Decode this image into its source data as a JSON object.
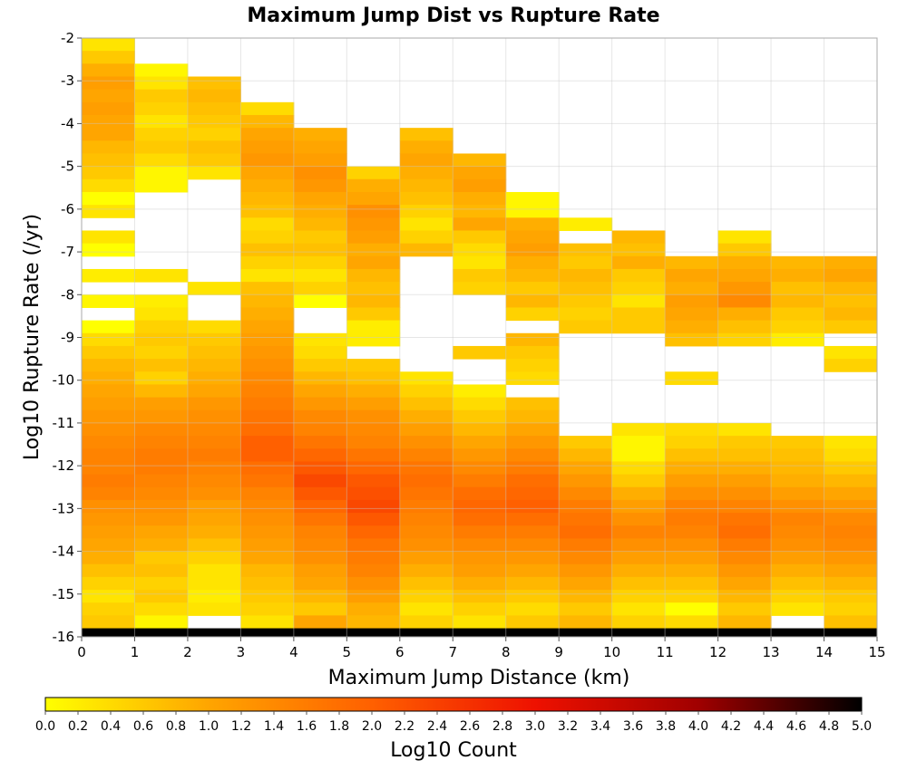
{
  "chart_data": {
    "type": "heatmap",
    "title": "Maximum Jump Dist vs Rupture Rate",
    "xlabel": "Maximum Jump Distance (km)",
    "ylabel": "Log10 Rupture Rate (/yr)",
    "colorbar_label": "Log10 Count",
    "xlim": [
      0,
      15
    ],
    "ylim": [
      -16,
      -2
    ],
    "x_ticks": [
      "0",
      "1",
      "2",
      "3",
      "4",
      "5",
      "6",
      "7",
      "8",
      "9",
      "10",
      "11",
      "12",
      "13",
      "14",
      "15"
    ],
    "y_ticks": [
      "-2",
      "-3",
      "-4",
      "-5",
      "-6",
      "-7",
      "-8",
      "-9",
      "-10",
      "-11",
      "-12",
      "-13",
      "-14",
      "-15",
      "-16"
    ],
    "colorbar_ticks": [
      "0.0",
      "0.2",
      "0.4",
      "0.6",
      "0.8",
      "1.0",
      "1.2",
      "1.4",
      "1.6",
      "1.8",
      "2.0",
      "2.2",
      "2.4",
      "2.6",
      "2.8",
      "3.0",
      "3.2",
      "3.4",
      "3.6",
      "3.8",
      "4.0",
      "4.2",
      "4.4",
      "4.6",
      "4.8",
      "5.0"
    ],
    "color_range": [
      0,
      5
    ],
    "colormap_stops": [
      "#ffff00",
      "#ffa500",
      "#ff6000",
      "#ee1100",
      "#a00000",
      "#000000"
    ],
    "grid": true,
    "x_bin_width": 1,
    "y_bin_width": 0.3,
    "y_bin_start": -16.1,
    "columns_value_note": "values listed from top row (y≈-3.1) downward; null = empty bin",
    "columns": [
      [
        0.3,
        0.6,
        0.9,
        1.1,
        1.0,
        1.1,
        1.0,
        1.0,
        0.8,
        0.7,
        0.6,
        0.4,
        0.0,
        0.3,
        null,
        0.3,
        0.0,
        null,
        0.2,
        null,
        0.1,
        null,
        0.0,
        0.4,
        0.6,
        0.8,
        0.9,
        1.0,
        1.1,
        1.2,
        1.3,
        1.4,
        1.5,
        1.5,
        1.6,
        1.5,
        1.3,
        1.2,
        1.1,
        1.0,
        0.9,
        0.7,
        0.5,
        0.3,
        0.5,
        0.6,
        5.0
      ],
      [
        null,
        null,
        0.1,
        0.3,
        0.6,
        0.5,
        0.3,
        0.5,
        0.6,
        0.4,
        0.1,
        0.1,
        null,
        null,
        null,
        null,
        null,
        null,
        0.3,
        null,
        0.2,
        0.3,
        0.5,
        0.6,
        0.5,
        0.7,
        0.5,
        0.8,
        1.1,
        1.2,
        1.4,
        1.5,
        1.6,
        1.6,
        1.5,
        1.4,
        1.3,
        1.2,
        1.0,
        0.9,
        0.6,
        0.7,
        0.5,
        0.6,
        0.4,
        0.1,
        5.0
      ],
      [
        null,
        null,
        null,
        0.7,
        0.8,
        0.7,
        0.6,
        0.5,
        0.7,
        0.6,
        0.3,
        null,
        null,
        null,
        null,
        null,
        null,
        null,
        null,
        0.3,
        null,
        null,
        0.4,
        0.6,
        0.7,
        0.8,
        0.9,
        1.0,
        1.2,
        1.3,
        1.4,
        1.5,
        1.6,
        1.5,
        1.4,
        1.3,
        1.1,
        1.0,
        0.9,
        0.7,
        0.5,
        0.3,
        0.3,
        0.2,
        0.3,
        null,
        5.0
      ],
      [
        null,
        null,
        0.4,
        0.8,
        1.0,
        1.1,
        1.2,
        1.0,
        0.9,
        0.8,
        0.7,
        0.4,
        0.5,
        0.7,
        0.5,
        0.3,
        0.7,
        0.8,
        0.9,
        1.0,
        1.1,
        1.2,
        1.3,
        1.4,
        1.5,
        1.6,
        1.7,
        1.8,
        2.0,
        2.0,
        1.8,
        1.7,
        1.5,
        1.4,
        1.3,
        1.2,
        1.1,
        1.0,
        0.8,
        0.7,
        0.6,
        0.5,
        0.3,
        5.0
      ],
      [
        null,
        null,
        null,
        0.9,
        1.0,
        1.1,
        1.3,
        1.2,
        1.0,
        0.9,
        0.8,
        0.6,
        0.7,
        0.5,
        0.3,
        0.5,
        0.0,
        null,
        null,
        0.3,
        0.4,
        0.6,
        0.8,
        1.0,
        1.2,
        1.4,
        1.5,
        1.7,
        1.9,
        2.1,
        2.3,
        2.1,
        1.9,
        1.7,
        1.5,
        1.4,
        1.3,
        1.1,
        1.0,
        0.8,
        0.6,
        1.0,
        5.0
      ],
      [
        null,
        null,
        0.5,
        0.9,
        1.0,
        1.3,
        1.2,
        1.1,
        0.9,
        1.0,
        0.8,
        0.7,
        0.8,
        0.6,
        0.2,
        0.2,
        null,
        0.6,
        0.7,
        0.9,
        1.1,
        1.3,
        1.4,
        1.5,
        1.7,
        1.9,
        2.1,
        2.2,
        2.3,
        2.1,
        1.9,
        1.7,
        1.6,
        1.5,
        1.3,
        1.1,
        0.9,
        0.8,
        5.0
      ],
      [
        null,
        0.7,
        0.9,
        1.0,
        0.9,
        0.8,
        0.7,
        0.5,
        0.3,
        0.5,
        0.8,
        null,
        null,
        null,
        null,
        null,
        null,
        null,
        null,
        null,
        0.3,
        0.5,
        0.7,
        0.9,
        1.1,
        1.3,
        1.5,
        1.7,
        1.8,
        1.7,
        1.6,
        1.5,
        1.4,
        1.3,
        1.1,
        0.9,
        0.7,
        0.5,
        0.3,
        0.5,
        5.0
      ],
      [
        null,
        0.8,
        1.0,
        1.1,
        0.9,
        0.8,
        1.0,
        0.6,
        0.4,
        0.3,
        0.6,
        0.5,
        null,
        null,
        null,
        null,
        0.6,
        null,
        null,
        0.2,
        0.4,
        0.6,
        0.8,
        1.0,
        1.2,
        1.4,
        1.6,
        1.8,
        1.9,
        1.8,
        1.6,
        1.4,
        1.2,
        1.1,
        0.9,
        0.7,
        0.5,
        0.3,
        5.0
      ],
      [
        null,
        0.1,
        0.1,
        0.9,
        1.0,
        1.1,
        0.9,
        0.8,
        0.6,
        0.8,
        0.5,
        null,
        0.8,
        0.6,
        0.5,
        0.4,
        null,
        0.7,
        0.8,
        1.0,
        1.2,
        1.4,
        1.6,
        1.8,
        1.9,
        2.0,
        1.8,
        1.6,
        1.4,
        1.2,
        1.0,
        0.8,
        0.6,
        0.4,
        0.6,
        5.0
      ],
      [
        null,
        0.2,
        null,
        0.7,
        0.6,
        0.8,
        0.7,
        0.6,
        0.5,
        0.6,
        null,
        null,
        null,
        null,
        null,
        null,
        null,
        null,
        0.6,
        0.8,
        1.0,
        1.2,
        1.4,
        1.6,
        1.7,
        1.8,
        1.6,
        1.4,
        1.2,
        1.0,
        0.8,
        0.6,
        0.8,
        5.0
      ],
      [
        null,
        null,
        null,
        0.8,
        0.7,
        0.9,
        0.6,
        0.5,
        0.3,
        0.6,
        0.6,
        null,
        null,
        null,
        null,
        null,
        null,
        null,
        0.3,
        0.1,
        0.1,
        0.4,
        0.6,
        0.9,
        1.1,
        1.3,
        1.5,
        1.3,
        1.1,
        0.9,
        0.7,
        0.5,
        0.3,
        0.5,
        5.0
      ],
      [
        null,
        null,
        null,
        0.8,
        1.0,
        0.9,
        1.1,
        1.0,
        0.9,
        0.7,
        null,
        null,
        0.4,
        null,
        null,
        null,
        0.4,
        0.5,
        0.7,
        0.9,
        1.1,
        1.3,
        1.5,
        1.6,
        1.5,
        1.3,
        1.1,
        0.9,
        0.7,
        0.5,
        0.0,
        0.4,
        5.0
      ],
      [
        null,
        null,
        0.3,
        0.6,
        0.9,
        1.0,
        1.2,
        1.4,
        0.9,
        0.7,
        0.5,
        null,
        null,
        null,
        null,
        null,
        null,
        0.3,
        0.6,
        0.7,
        0.9,
        1.1,
        1.3,
        1.5,
        1.7,
        1.8,
        1.6,
        1.4,
        1.2,
        1.0,
        0.8,
        0.6,
        0.8,
        5.0
      ],
      [
        null,
        null,
        null,
        null,
        0.8,
        0.9,
        0.7,
        0.8,
        0.6,
        0.5,
        0.2,
        null,
        null,
        null,
        null,
        null,
        null,
        null,
        0.6,
        0.7,
        0.8,
        0.9,
        1.1,
        1.3,
        1.5,
        1.4,
        1.3,
        1.1,
        0.9,
        0.7,
        0.5,
        0.3,
        null,
        5.0
      ],
      [
        null,
        null,
        null,
        null,
        0.9,
        1.0,
        0.8,
        0.7,
        0.8,
        0.6,
        null,
        0.3,
        0.5,
        null,
        null,
        null,
        null,
        null,
        0.3,
        0.4,
        0.6,
        0.8,
        1.0,
        1.2,
        1.4,
        1.5,
        1.4,
        1.2,
        1.0,
        0.8,
        0.6,
        0.5,
        0.7,
        5.0
      ]
    ]
  }
}
